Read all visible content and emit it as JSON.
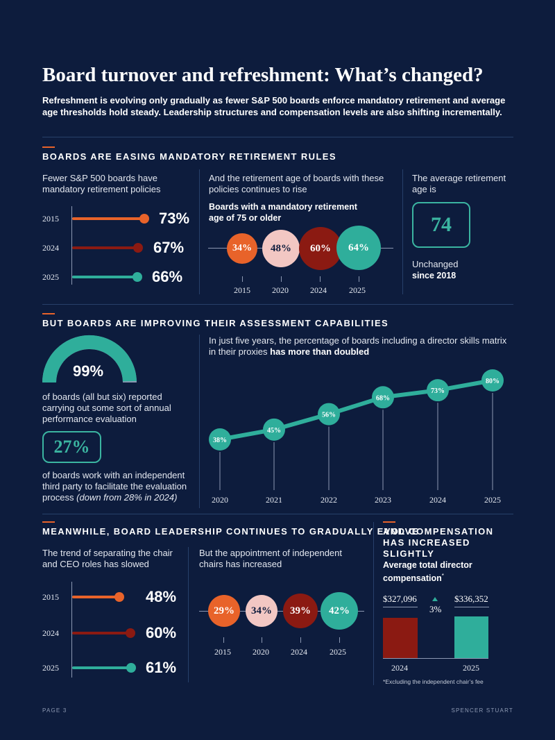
{
  "title": "Board turnover and refreshment: What’s changed?",
  "intro": "Refreshment is evolving only gradually as fewer S&P 500 boards enforce mandatory retirement and average age thresholds hold steady. Leadership structures and compensation levels are also shifting incrementally.",
  "section1": {
    "heading": "BOARDS ARE EASING MANDATORY RETIREMENT RULES",
    "col1_text": "Fewer S&P 500 boards have mandatory retirement policies",
    "col1_items": [
      {
        "year": "2015",
        "value": "73%"
      },
      {
        "year": "2024",
        "value": "67%"
      },
      {
        "year": "2025",
        "value": "66%"
      }
    ],
    "col2_text": "And the retirement age of boards with these policies continues to rise",
    "col2_sub": "Boards with a mandatory retirement age of 75 or older",
    "col2_items": [
      {
        "year": "2015",
        "value": "34%"
      },
      {
        "year": "2020",
        "value": "48%"
      },
      {
        "year": "2024",
        "value": "60%"
      },
      {
        "year": "2025",
        "value": "64%"
      }
    ],
    "col3_text": "The average retirement age is",
    "col3_value": "74",
    "col3_note": "Unchanged",
    "col3_note_bold": "since 2018"
  },
  "section2": {
    "heading": "BUT BOARDS ARE IMPROVING THEIR ASSESSMENT CAPABILITIES",
    "gauge_value": "99%",
    "gauge_fraction": 0.99,
    "gauge_text": "of boards (all but six) reported carrying out some sort of annual performance evaluation",
    "box_value": "27%",
    "box_text": "of boards work with an independent third party to facilitate the evaluation process",
    "box_text_italic": "(down from 28% in 2024)",
    "chart_intro": "In just five years, the percentage of boards including a director skills matrix in their proxies",
    "chart_intro_bold": "has more than doubled"
  },
  "chart_data": {
    "type": "line",
    "x": [
      "2020",
      "2021",
      "2022",
      "2023",
      "2024",
      "2025"
    ],
    "values": [
      38,
      45,
      56,
      68,
      73,
      80
    ],
    "labels": [
      "38%",
      "45%",
      "56%",
      "68%",
      "73%",
      "80%"
    ],
    "colors": {
      "line": "#2fae9b"
    }
  },
  "section3": {
    "heading": "MEANWHILE, BOARD LEADERSHIP CONTINUES TO GRADUALLY EVOLVE",
    "col1_text": "The trend of separating the chair and CEO roles has slowed",
    "col1_items": [
      {
        "year": "2015",
        "value": "48%"
      },
      {
        "year": "2024",
        "value": "60%"
      },
      {
        "year": "2025",
        "value": "61%"
      }
    ],
    "col2_text": "But the appointment of independent chairs has increased",
    "col2_items": [
      {
        "year": "2015",
        "value": "29%"
      },
      {
        "year": "2020",
        "value": "34%"
      },
      {
        "year": "2024",
        "value": "39%"
      },
      {
        "year": "2025",
        "value": "42%"
      }
    ]
  },
  "section4": {
    "heading": "AND COMPENSATION HAS INCREASED SLIGHTLY",
    "sub": "Average total director compensation",
    "sup": "*",
    "bars": [
      {
        "year": "2024",
        "value": "$327,096"
      },
      {
        "year": "2025",
        "value": "$336,352"
      }
    ],
    "change": "3%",
    "footnote": "*Excluding the independent chair’s fee"
  },
  "footer": {
    "page": "PAGE 3",
    "brand": "SPENCER STUART"
  },
  "colors": {
    "navy": "#0d1c3d",
    "orange": "#e8632a",
    "darkred": "#8b1a12",
    "teal": "#2fae9b",
    "pink": "#f2c7c3",
    "rule": "#27406a"
  }
}
